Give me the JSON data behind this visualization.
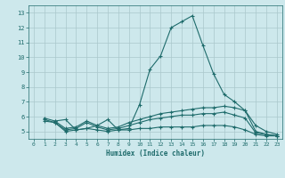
{
  "title": "",
  "xlabel": "Humidex (Indice chaleur)",
  "xlim": [
    -0.5,
    23.5
  ],
  "ylim": [
    4.5,
    13.5
  ],
  "xticks": [
    0,
    1,
    2,
    3,
    4,
    5,
    6,
    7,
    8,
    9,
    10,
    11,
    12,
    13,
    14,
    15,
    16,
    17,
    18,
    19,
    20,
    21,
    22,
    23
  ],
  "yticks": [
    5,
    6,
    7,
    8,
    9,
    10,
    11,
    12,
    13
  ],
  "bg_color": "#cde8ec",
  "line_color": "#1e6b6b",
  "grid_color": "#aac8cc",
  "lines": [
    {
      "x": [
        2,
        3,
        4,
        5,
        6,
        7,
        8,
        9,
        10,
        11,
        12,
        13,
        14,
        15,
        16,
        17,
        18,
        19,
        20,
        21,
        22,
        23
      ],
      "y": [
        5.7,
        5.8,
        5.1,
        5.2,
        5.4,
        5.8,
        5.1,
        5.2,
        6.8,
        9.2,
        10.1,
        12.0,
        12.4,
        12.8,
        10.8,
        8.9,
        7.5,
        7.0,
        6.4,
        5.4,
        5.0,
        4.8
      ]
    },
    {
      "x": [
        1,
        2,
        3,
        4,
        5,
        6,
        7,
        8,
        9,
        10,
        11,
        12,
        13,
        14,
        15,
        16,
        17,
        18,
        19,
        20,
        21,
        22,
        23
      ],
      "y": [
        5.9,
        5.7,
        5.2,
        5.3,
        5.7,
        5.4,
        5.2,
        5.3,
        5.6,
        5.8,
        6.0,
        6.2,
        6.3,
        6.4,
        6.5,
        6.6,
        6.6,
        6.7,
        6.6,
        6.4,
        5.0,
        4.8,
        4.7
      ]
    },
    {
      "x": [
        1,
        2,
        3,
        4,
        5,
        6,
        7,
        8,
        9,
        10,
        11,
        12,
        13,
        14,
        15,
        16,
        17,
        18,
        19,
        20,
        21,
        22,
        23
      ],
      "y": [
        5.8,
        5.6,
        5.1,
        5.2,
        5.6,
        5.3,
        5.1,
        5.2,
        5.4,
        5.6,
        5.8,
        5.9,
        6.0,
        6.1,
        6.1,
        6.2,
        6.2,
        6.3,
        6.1,
        5.9,
        4.9,
        4.8,
        4.7
      ]
    },
    {
      "x": [
        1,
        2,
        3,
        4,
        5,
        6,
        7,
        8,
        9,
        10,
        11,
        12,
        13,
        14,
        15,
        16,
        17,
        18,
        19,
        20,
        21,
        22,
        23
      ],
      "y": [
        5.7,
        5.6,
        5.0,
        5.1,
        5.2,
        5.1,
        5.0,
        5.1,
        5.1,
        5.2,
        5.2,
        5.3,
        5.3,
        5.3,
        5.3,
        5.4,
        5.4,
        5.4,
        5.3,
        5.1,
        4.8,
        4.7,
        4.7
      ]
    }
  ]
}
